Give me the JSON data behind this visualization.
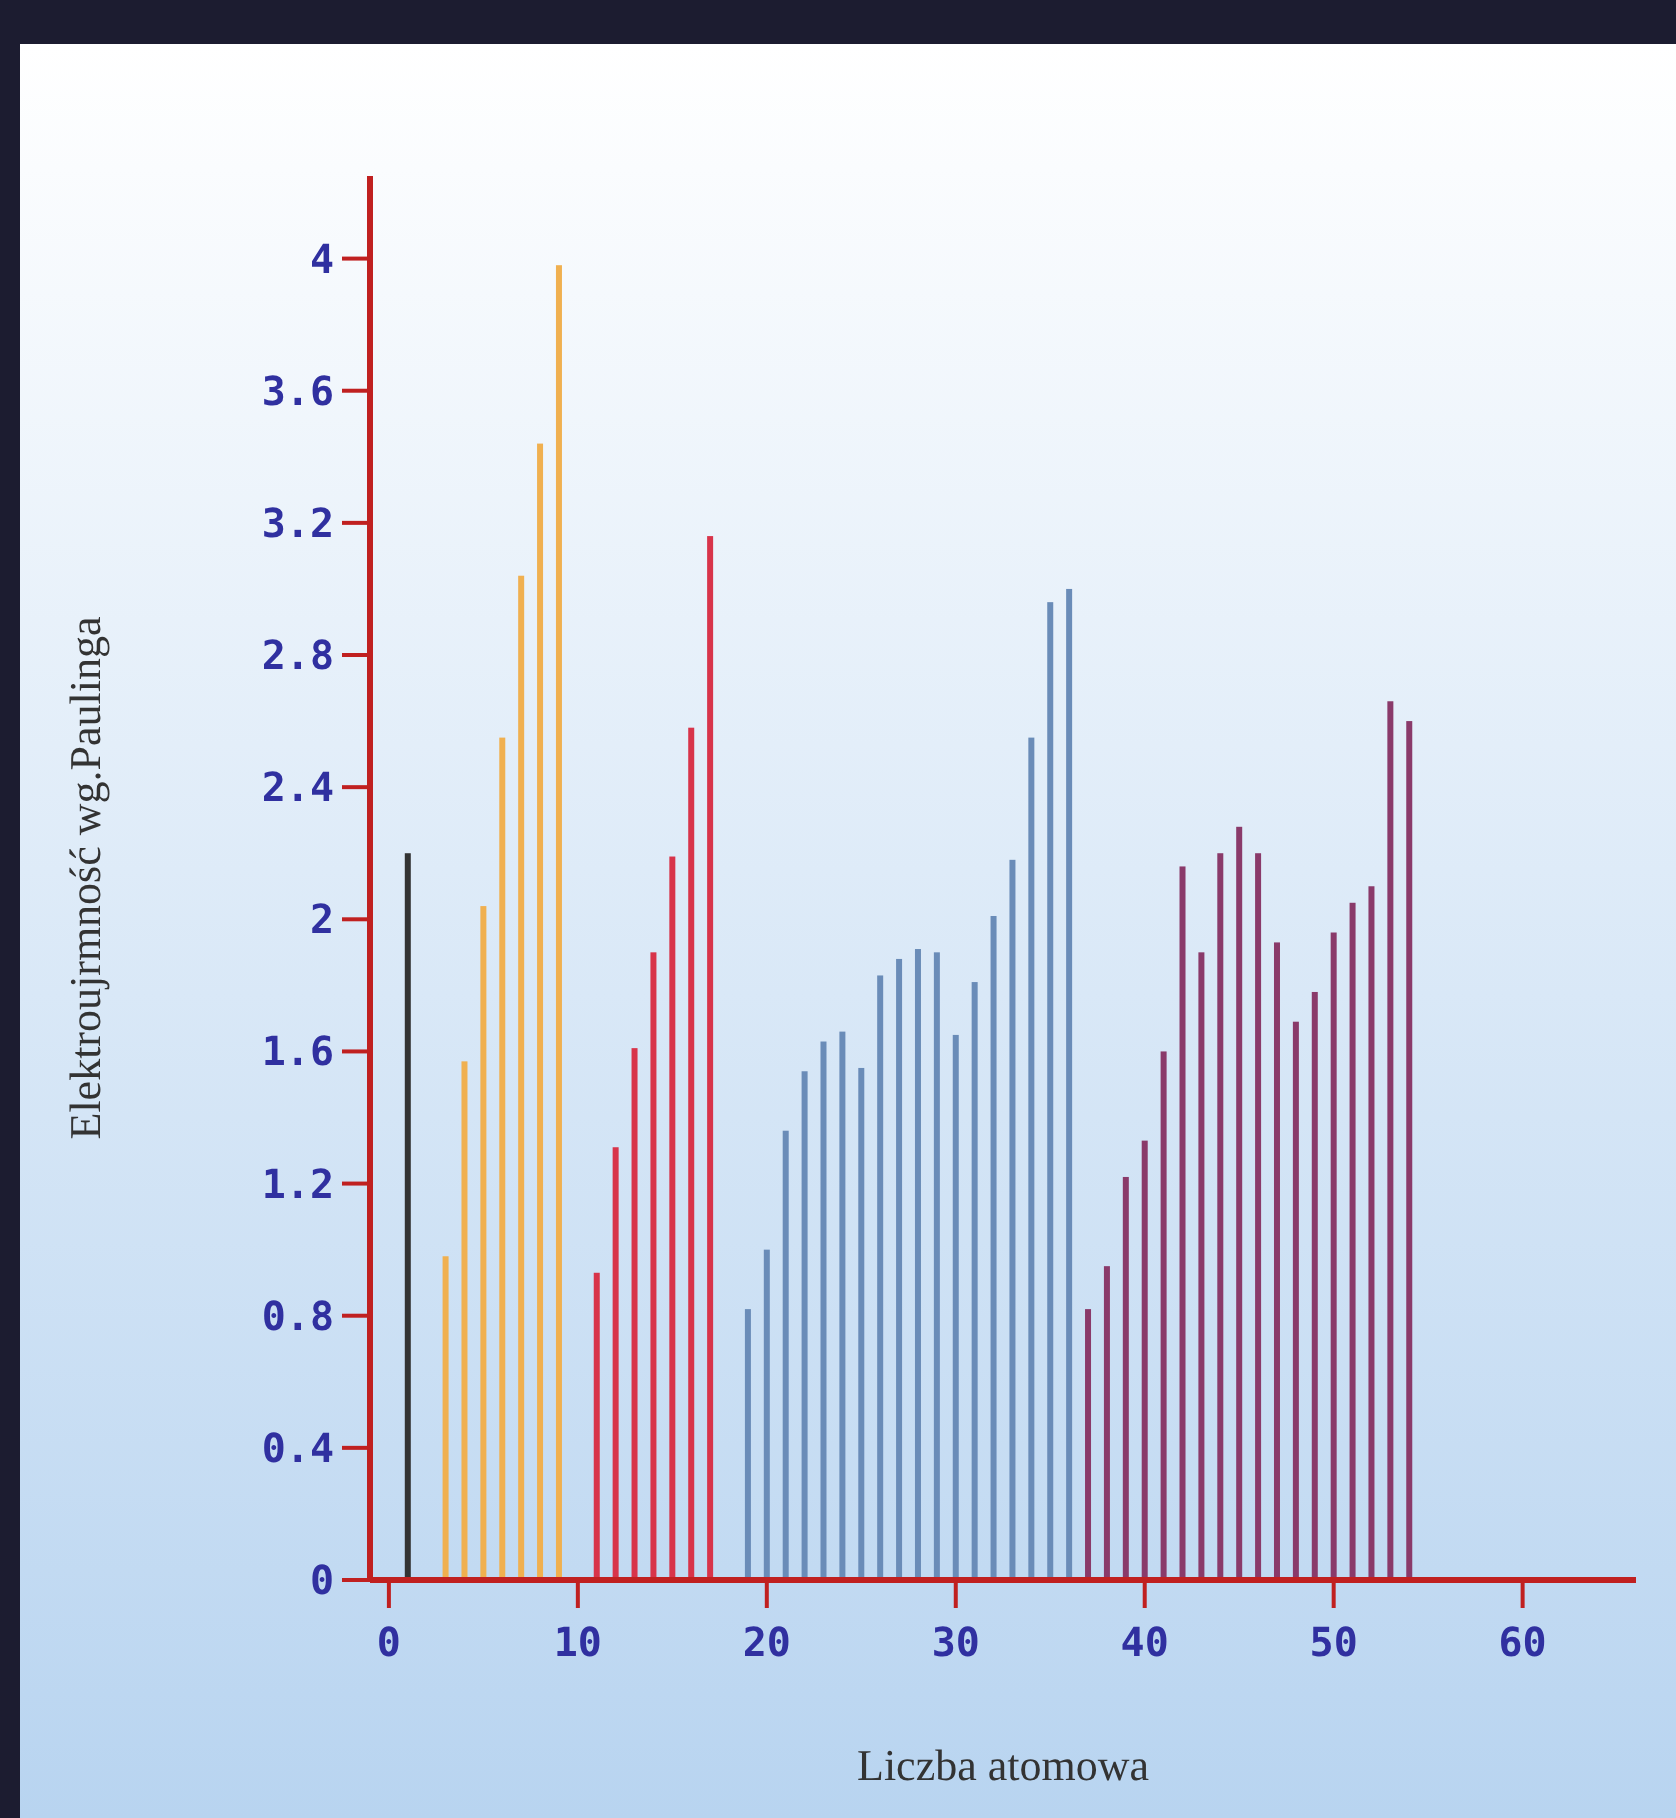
{
  "chart_data": {
    "type": "bar",
    "xlabel": "Liczba atomowa",
    "ylabel": "Elektroujrmność wg.Paulinga",
    "xlim": [
      -1,
      66
    ],
    "ylim": [
      0,
      4.25
    ],
    "xticks": [
      0,
      10,
      20,
      30,
      40,
      50,
      60
    ],
    "yticks": [
      0,
      0.4,
      0.8,
      1.2,
      1.6,
      2,
      2.4,
      2.8,
      3.2,
      3.6,
      4
    ],
    "series": [
      {
        "color": "#333333",
        "x": [
          1
        ],
        "values": [
          2.2
        ]
      },
      {
        "color": "#f0b050",
        "x": [
          3,
          4,
          5,
          6,
          7,
          8,
          9
        ],
        "values": [
          0.98,
          1.57,
          2.04,
          2.55,
          3.04,
          3.44,
          3.98
        ]
      },
      {
        "color": "#d8344a",
        "x": [
          11,
          12,
          13,
          14,
          15,
          16,
          17
        ],
        "values": [
          0.93,
          1.31,
          1.61,
          1.9,
          2.19,
          2.58,
          3.16
        ]
      },
      {
        "color": "#6a8cb8",
        "x": [
          19,
          20,
          21,
          22,
          23,
          24,
          25,
          26,
          27,
          28,
          29,
          30,
          31,
          32,
          33,
          34,
          35,
          36
        ],
        "values": [
          0.82,
          1.0,
          1.36,
          1.54,
          1.63,
          1.66,
          1.55,
          1.83,
          1.88,
          1.91,
          1.9,
          1.65,
          1.81,
          2.01,
          2.18,
          2.55,
          2.96,
          3.0
        ]
      },
      {
        "color": "#8a3a6a",
        "x": [
          37,
          38,
          39,
          40,
          41,
          42,
          43,
          44,
          45,
          46,
          47,
          48,
          49,
          50,
          51,
          52,
          53,
          54
        ],
        "values": [
          0.82,
          0.95,
          1.22,
          1.33,
          1.6,
          2.16,
          1.9,
          2.2,
          2.28,
          2.2,
          1.93,
          1.69,
          1.78,
          1.96,
          2.05,
          2.1,
          2.66,
          2.6
        ]
      }
    ]
  }
}
